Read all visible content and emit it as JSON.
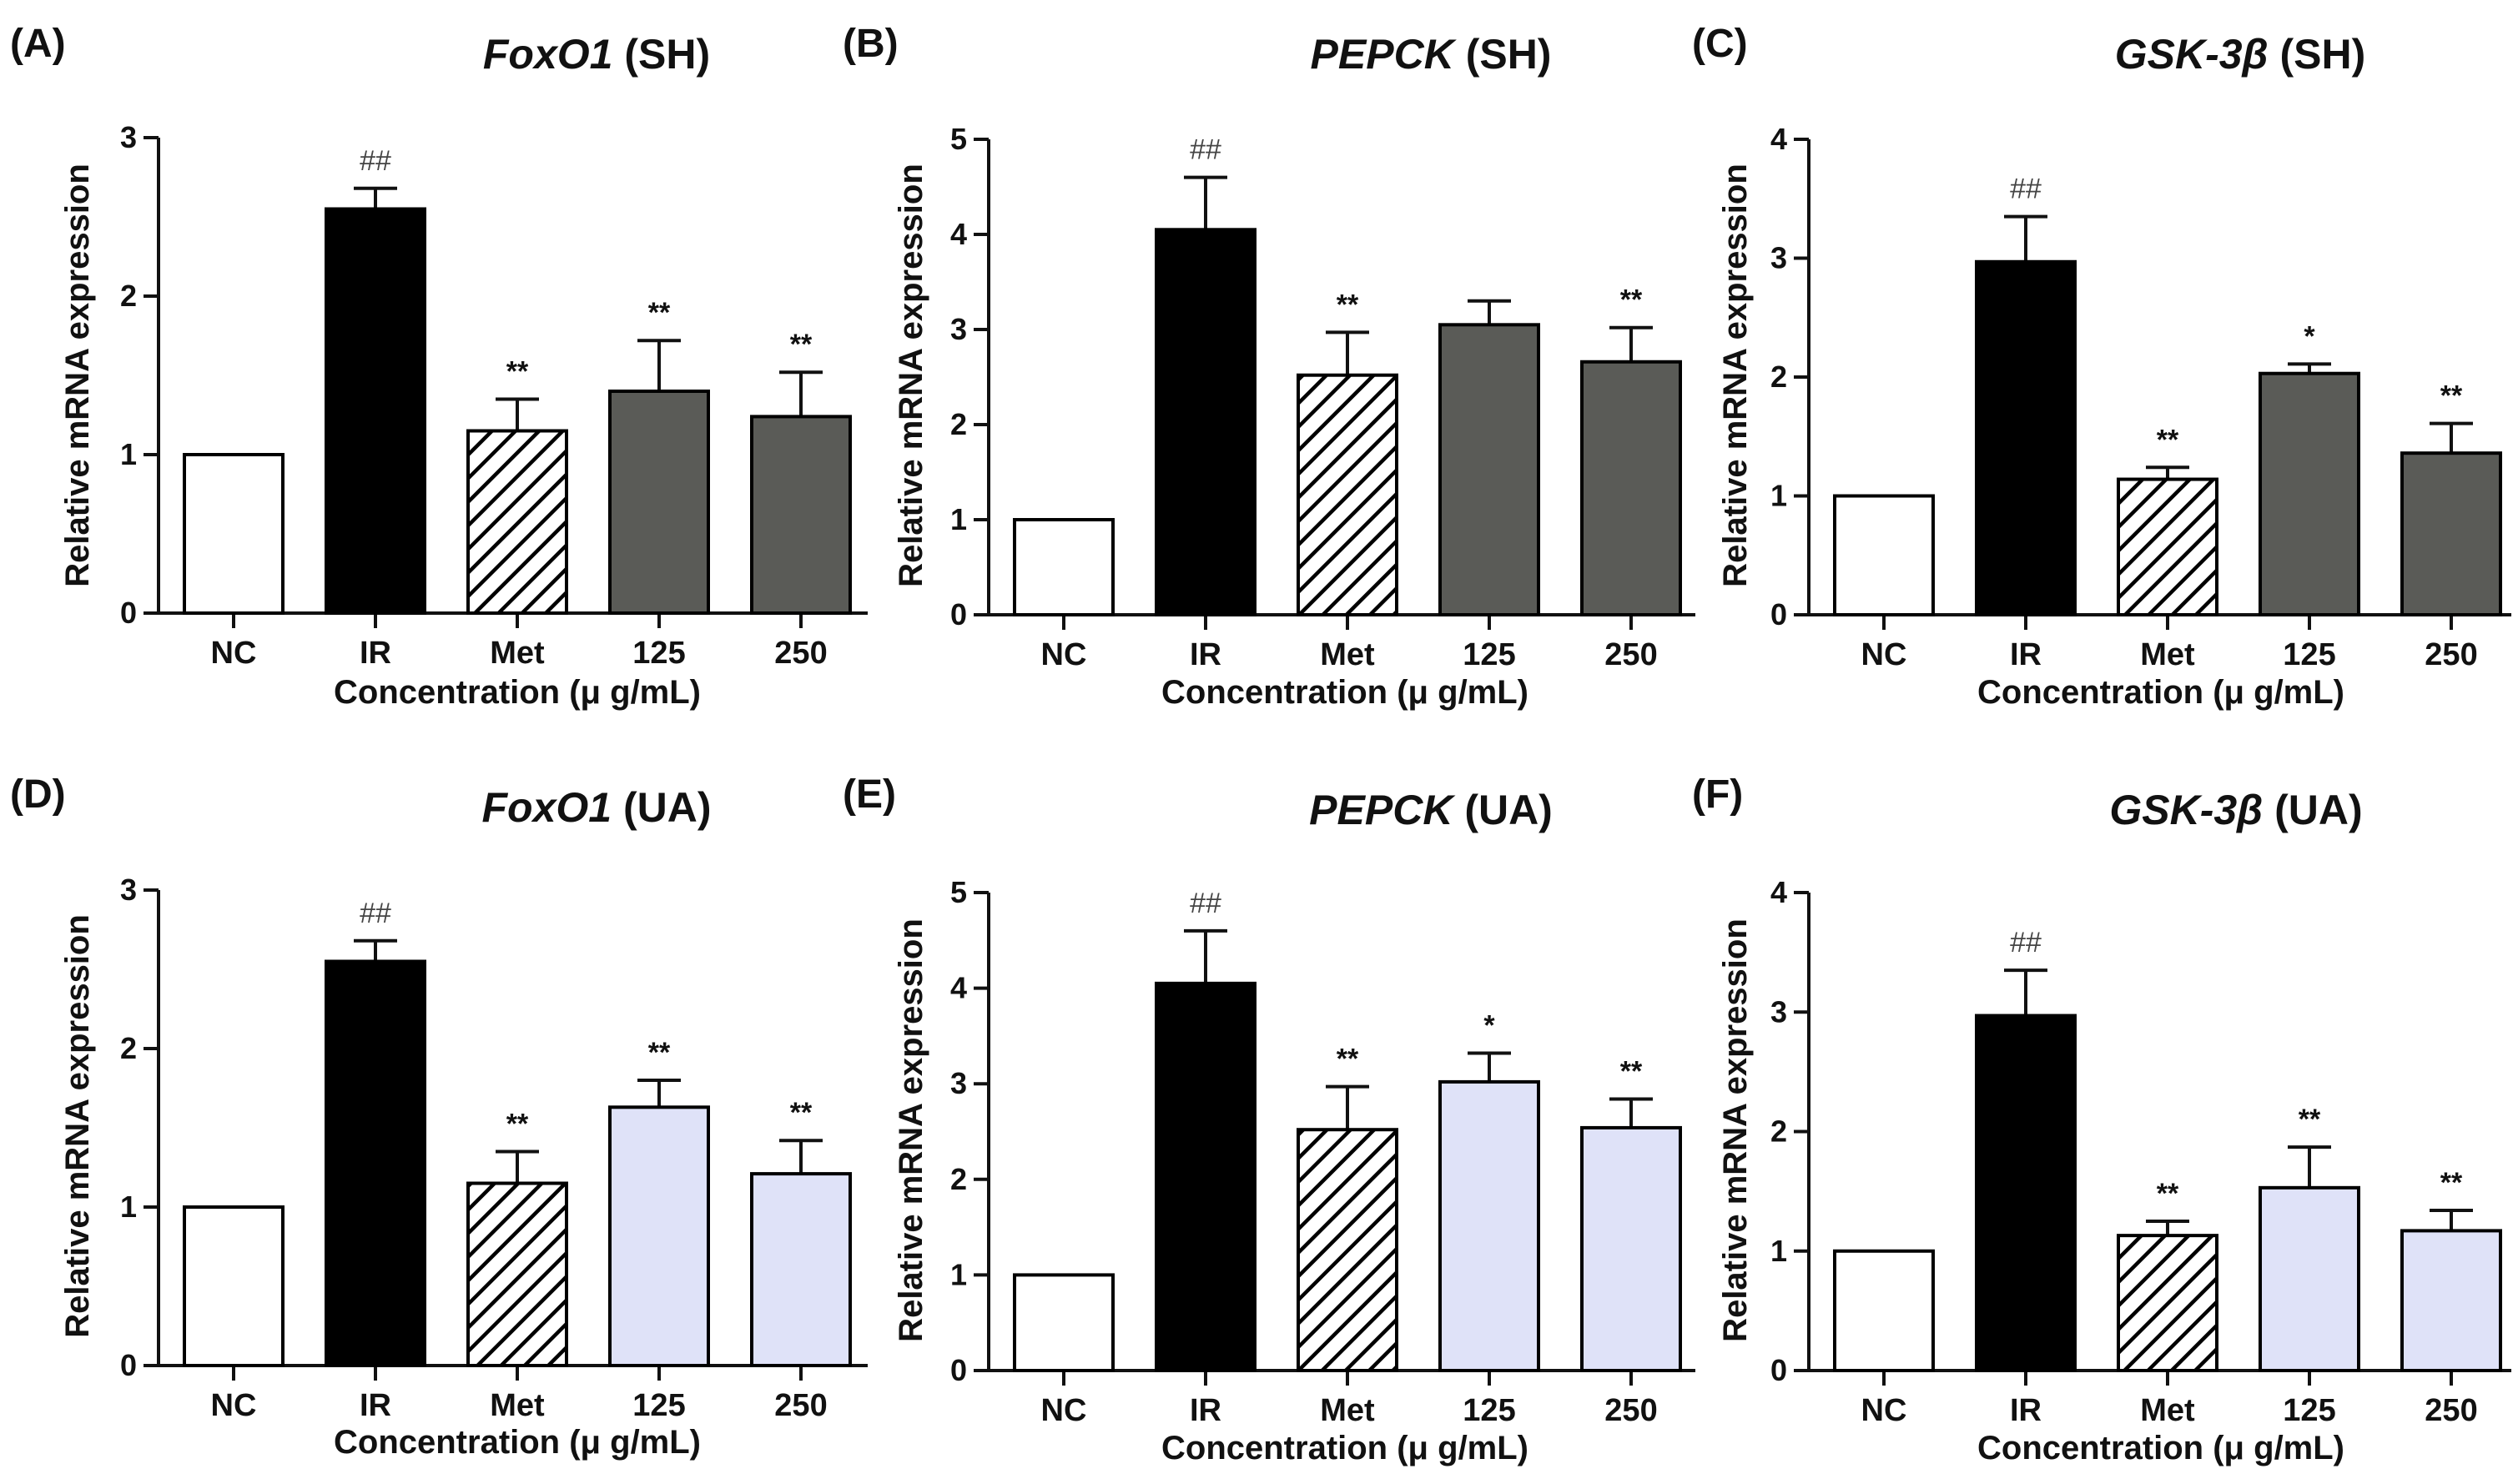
{
  "colors": {
    "nc": "#ffffff",
    "ir": "#000000",
    "sh": "#5a5b57",
    "ua": "#dfe2f8",
    "axis": "#111111"
  },
  "chart_data": [
    {
      "type": "bar",
      "panel": "(A)",
      "title_gene": "FoxO1",
      "title_suffix": " (SH)",
      "categories": [
        "NC",
        "IR",
        "Met",
        "125",
        "250"
      ],
      "values": [
        1.0,
        2.55,
        1.15,
        1.4,
        1.24
      ],
      "errors": [
        0,
        0.13,
        0.2,
        0.32,
        0.28
      ],
      "significance": [
        "",
        "##",
        "**",
        "**",
        "**"
      ],
      "fills": [
        "nc",
        "ir",
        "hatch",
        "sh",
        "sh"
      ],
      "ylim": [
        0,
        3
      ],
      "yticks": [
        0,
        1,
        2,
        3
      ],
      "ylabel": "Relative mRNA expression",
      "xlabel": "Concentration (μ g/mL)"
    },
    {
      "type": "bar",
      "panel": "(B)",
      "title_gene": "PEPCK",
      "title_suffix": " (SH)",
      "categories": [
        "NC",
        "IR",
        "Met",
        "125",
        "250"
      ],
      "values": [
        1.0,
        4.05,
        2.52,
        3.05,
        2.66
      ],
      "errors": [
        0,
        0.55,
        0.45,
        0.25,
        0.36
      ],
      "significance": [
        "",
        "##",
        "**",
        "",
        "**"
      ],
      "fills": [
        "nc",
        "ir",
        "hatch",
        "sh",
        "sh"
      ],
      "ylim": [
        0,
        5
      ],
      "yticks": [
        0,
        1,
        2,
        3,
        4,
        5
      ],
      "ylabel": "Relative mRNA expression",
      "xlabel": "Concentration (μ g/mL)"
    },
    {
      "type": "bar",
      "panel": "(C)",
      "title_gene": "GSK-3β",
      "title_suffix": "   (SH)",
      "categories": [
        "NC",
        "IR",
        "Met",
        "125",
        "250"
      ],
      "values": [
        1.0,
        2.97,
        1.14,
        2.03,
        1.36
      ],
      "errors": [
        0,
        0.38,
        0.1,
        0.08,
        0.25
      ],
      "significance": [
        "",
        "##",
        "**",
        "*",
        "**"
      ],
      "fills": [
        "nc",
        "ir",
        "hatch",
        "sh",
        "sh"
      ],
      "ylim": [
        0,
        4
      ],
      "yticks": [
        0,
        1,
        2,
        3,
        4
      ],
      "ylabel": "Relative mRNA expression",
      "xlabel": "Concentration (μ g/mL)"
    },
    {
      "type": "bar",
      "panel": "(D)",
      "title_gene": "FoxO1",
      "title_suffix": " (UA)",
      "categories": [
        "NC",
        "IR",
        "Met",
        "125",
        "250"
      ],
      "values": [
        1.0,
        2.55,
        1.15,
        1.63,
        1.21
      ],
      "errors": [
        0,
        0.13,
        0.2,
        0.17,
        0.21
      ],
      "significance": [
        "",
        "##",
        "**",
        "**",
        "**"
      ],
      "fills": [
        "nc",
        "ir",
        "hatch",
        "ua",
        "ua"
      ],
      "ylim": [
        0,
        3
      ],
      "yticks": [
        0,
        1,
        2,
        3
      ],
      "ylabel": "Relative mRNA expression",
      "xlabel": "Concentration (μ g/mL)"
    },
    {
      "type": "bar",
      "panel": "(E)",
      "title_gene": "PEPCK",
      "title_suffix": " (UA)",
      "categories": [
        "NC",
        "IR",
        "Met",
        "125",
        "250"
      ],
      "values": [
        1.0,
        4.05,
        2.52,
        3.02,
        2.54
      ],
      "errors": [
        0,
        0.55,
        0.45,
        0.3,
        0.3
      ],
      "significance": [
        "",
        "##",
        "**",
        "*",
        "**"
      ],
      "fills": [
        "nc",
        "ir",
        "hatch",
        "ua",
        "ua"
      ],
      "ylim": [
        0,
        5
      ],
      "yticks": [
        0,
        1,
        2,
        3,
        4,
        5
      ],
      "ylabel": "Relative mRNA expression",
      "xlabel": "Concentration (μ g/mL)"
    },
    {
      "type": "bar",
      "panel": "(F)",
      "title_gene": "GSK-3β",
      "title_suffix": "   (UA)",
      "categories": [
        "NC",
        "IR",
        "Met",
        "125",
        "250"
      ],
      "values": [
        1.0,
        2.97,
        1.13,
        1.53,
        1.17
      ],
      "errors": [
        0,
        0.38,
        0.12,
        0.34,
        0.17
      ],
      "significance": [
        "",
        "##",
        "**",
        "**",
        "**"
      ],
      "fills": [
        "nc",
        "ir",
        "hatch",
        "ua",
        "ua"
      ],
      "ylim": [
        0,
        4
      ],
      "yticks": [
        0,
        1,
        2,
        3,
        4
      ],
      "ylabel": "Relative mRNA expression",
      "xlabel": "Concentration (μ g/mL)"
    }
  ]
}
